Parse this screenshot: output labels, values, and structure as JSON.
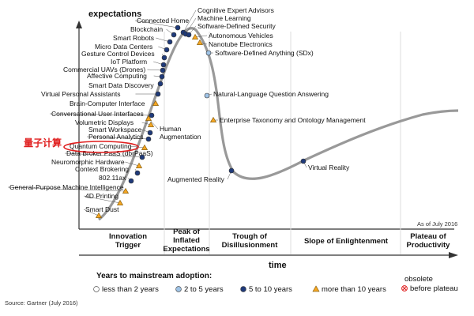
{
  "axis": {
    "y_title": "expectations",
    "x_title": "time"
  },
  "as_of": "As of July 2016",
  "source": "Source: Gartner (July 2016)",
  "annotation": "量子计算",
  "phases": [
    {
      "key": "innovation",
      "lines": [
        "Innovation",
        "Trigger"
      ]
    },
    {
      "key": "peak",
      "lines": [
        "Peak of",
        "Inflated",
        "Expectations"
      ]
    },
    {
      "key": "trough",
      "lines": [
        "Trough of",
        "Disillusionment"
      ]
    },
    {
      "key": "slope",
      "lines": [
        "Slope of Enlightenment"
      ]
    },
    {
      "key": "plateau",
      "lines": [
        "Plateau of",
        "Productivity"
      ]
    }
  ],
  "legend": {
    "title": "Years to mainstream adoption:",
    "obsolete_title": "obsolete",
    "items": [
      {
        "type": "lt2",
        "label": "less than 2 years"
      },
      {
        "type": "2to5",
        "label": "2 to 5 years"
      },
      {
        "type": "5to10",
        "label": "5 to 10 years"
      },
      {
        "type": "gt10",
        "label": "more than 10 years"
      },
      {
        "type": "obsolete",
        "label": "before plateau"
      }
    ]
  },
  "colors": {
    "curve": "#999999",
    "navy": "#1f3a7a",
    "light_blue": "#9fc3e6",
    "orange": "#f5a623",
    "obsolete_red": "#e02020",
    "highlight": "#e02020"
  },
  "technologies": [
    {
      "label": "Smart Dust",
      "type": "gt10"
    },
    {
      "label": "4D Printing",
      "type": "gt10"
    },
    {
      "label": "General-Purpose Machine Intelligence",
      "type": "gt10"
    },
    {
      "label": "802.11ax",
      "type": "5to10"
    },
    {
      "label": "Context Brokering",
      "type": "5to10"
    },
    {
      "label": "Neuromorphic Hardware",
      "type": "gt10"
    },
    {
      "label": "Data Broker PaaS (dbrPaaS)",
      "type": "5to10"
    },
    {
      "label": "Quantum Computing",
      "type": "gt10",
      "highlight": true
    },
    {
      "label": "Personal Analytics",
      "type": "5to10"
    },
    {
      "label": "Smart Workspace",
      "type": "5to10"
    },
    {
      "label": "Volumetric Displays",
      "type": "gt10"
    },
    {
      "label": "Conversational User Interfaces",
      "type": "5to10"
    },
    {
      "label": "Brain-Computer Interface",
      "type": "gt10"
    },
    {
      "label": "Virtual Personal Assistants",
      "type": "5to10"
    },
    {
      "label": "Smart Data Discovery",
      "type": "5to10"
    },
    {
      "label": "Affective Computing",
      "type": "5to10"
    },
    {
      "label": "Commercial UAVs (Drones)",
      "type": "5to10"
    },
    {
      "label": "IoT Platform",
      "type": "5to10"
    },
    {
      "label": "Gesture Control Devices",
      "type": "5to10"
    },
    {
      "label": "Micro Data Centers",
      "type": "5to10"
    },
    {
      "label": "Smart Robots",
      "type": "5to10"
    },
    {
      "label": "Blockchain",
      "type": "5to10"
    },
    {
      "label": "Connected Home",
      "type": "5to10"
    },
    {
      "label": "Cognitive Expert Advisors",
      "type": "5to10"
    },
    {
      "label": "Machine Learning",
      "type": "5to10"
    },
    {
      "label": "Software-Defined Security",
      "type": "5to10"
    },
    {
      "label": "Autonomous Vehicles",
      "type": "gt10"
    },
    {
      "label": "Nanotube Electronics",
      "type": "gt10"
    },
    {
      "label": "Software-Defined Anything (SDx)",
      "type": "2to5"
    },
    {
      "label": "Human Augmentation",
      "type": "gt10"
    },
    {
      "label": "Natural-Language Question Answering",
      "type": "2to5"
    },
    {
      "label": "Enterprise Taxonomy and Ontology Management",
      "type": "gt10"
    },
    {
      "label": "Augmented Reality",
      "type": "5to10"
    },
    {
      "label": "Virtual Reality",
      "type": "5to10"
    }
  ]
}
